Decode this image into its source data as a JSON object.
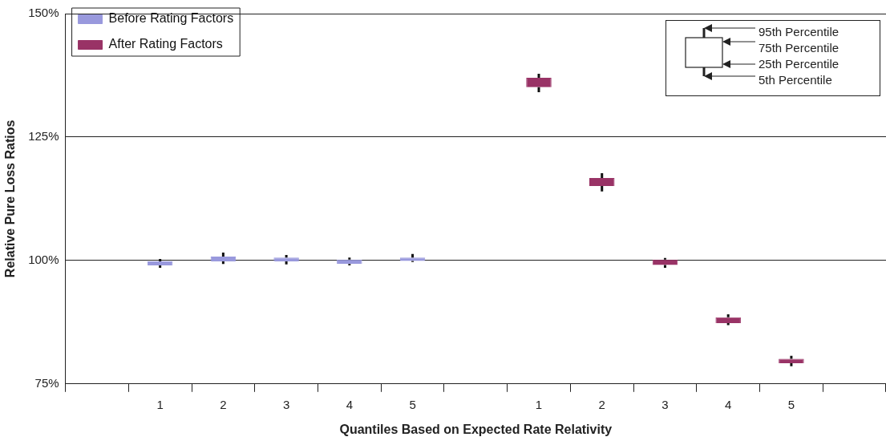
{
  "chart_data": {
    "type": "box",
    "xlabel": "Quantiles Based on Expected Rate Relativity",
    "ylabel": "Relative Pure Loss Ratios",
    "categories": [
      null,
      "1",
      "2",
      "3",
      "4",
      "5",
      null,
      "1",
      "2",
      "3",
      "4",
      "5",
      null
    ],
    "ylim": [
      75,
      150
    ],
    "yticks": [
      {
        "value": 75,
        "label": "75%"
      },
      {
        "value": 100,
        "label": "100%"
      },
      {
        "value": 125,
        "label": "125%"
      },
      {
        "value": 150,
        "label": "150%"
      }
    ],
    "grid": "y",
    "legend": "top left",
    "annotations": [
      "95th Percentile",
      "75th Percentile",
      "25th Percentile",
      "5th Percentile"
    ],
    "series": [
      {
        "name": "Before Rating Factors",
        "color": "#9999dd",
        "boxes": [
          null,
          {
            "low": 98.5,
            "q1": 99.0,
            "q3": 99.8,
            "high": 100.3
          },
          {
            "low": 99.3,
            "q1": 99.8,
            "q3": 100.8,
            "high": 101.6
          },
          {
            "low": 99.2,
            "q1": 99.8,
            "q3": 100.6,
            "high": 101.1
          },
          {
            "low": 99.0,
            "q1": 99.3,
            "q3": 100.2,
            "high": 100.6
          },
          {
            "low": 99.7,
            "q1": 99.9,
            "q3": 100.6,
            "high": 101.3
          },
          null,
          null,
          null,
          null,
          null,
          null,
          null
        ]
      },
      {
        "name": "After Rating Factors",
        "color": "#993366",
        "boxes": [
          null,
          null,
          null,
          null,
          null,
          null,
          null,
          {
            "low": 134.1,
            "q1": 135.1,
            "q3": 137.0,
            "high": 137.8
          },
          {
            "low": 114.0,
            "q1": 115.1,
            "q3": 116.7,
            "high": 117.7
          },
          {
            "low": 98.5,
            "q1": 99.1,
            "q3": 100.2,
            "high": 100.5
          },
          {
            "low": 86.9,
            "q1": 87.3,
            "q3": 88.5,
            "high": 89.1
          },
          {
            "low": 78.6,
            "q1": 79.2,
            "q3": 80.1,
            "high": 80.7
          },
          null
        ]
      }
    ]
  }
}
